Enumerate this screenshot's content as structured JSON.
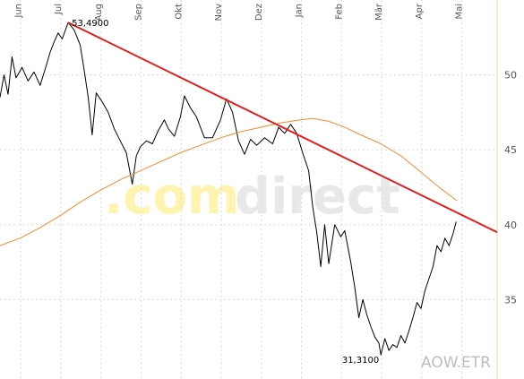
{
  "chart_data": {
    "type": "line",
    "symbol": "AOW.ETR",
    "watermark": {
      "part1": ".com",
      "part2": "direct"
    },
    "x_tick_labels": [
      "Jun",
      "Jul",
      "Aug",
      "Sep",
      "Okt",
      "Nov",
      "Dez",
      "Jan",
      "Feb",
      "Mär",
      "Apr",
      "Mai"
    ],
    "y_ticks": [
      35,
      40,
      45,
      50
    ],
    "ylim": [
      29.7,
      55.0
    ],
    "xlim": [
      0,
      12.4
    ],
    "grid": true,
    "max_label": "53,4900",
    "min_label": "31,3100",
    "max_point": {
      "x": 1.7,
      "y": 53.49
    },
    "min_point": {
      "x": 9.5,
      "y": 31.31
    },
    "series": [
      {
        "role": "price",
        "color": "#000000",
        "points": [
          [
            0.0,
            48.5
          ],
          [
            0.1,
            50.0
          ],
          [
            0.2,
            48.7
          ],
          [
            0.3,
            51.2
          ],
          [
            0.4,
            49.8
          ],
          [
            0.55,
            50.5
          ],
          [
            0.7,
            49.6
          ],
          [
            0.85,
            50.2
          ],
          [
            1.0,
            49.3
          ],
          [
            1.15,
            50.6
          ],
          [
            1.25,
            51.5
          ],
          [
            1.35,
            52.2
          ],
          [
            1.45,
            52.8
          ],
          [
            1.55,
            52.4
          ],
          [
            1.7,
            53.49
          ],
          [
            1.85,
            53.0
          ],
          [
            2.0,
            52.0
          ],
          [
            2.1,
            50.3
          ],
          [
            2.2,
            48.5
          ],
          [
            2.3,
            46.0
          ],
          [
            2.4,
            48.8
          ],
          [
            2.55,
            48.2
          ],
          [
            2.7,
            47.5
          ],
          [
            2.85,
            46.4
          ],
          [
            3.0,
            45.6
          ],
          [
            3.15,
            44.8
          ],
          [
            3.3,
            42.7
          ],
          [
            3.4,
            44.6
          ],
          [
            3.5,
            45.2
          ],
          [
            3.65,
            45.6
          ],
          [
            3.8,
            45.4
          ],
          [
            3.95,
            46.3
          ],
          [
            4.1,
            47.0
          ],
          [
            4.2,
            46.4
          ],
          [
            4.35,
            45.9
          ],
          [
            4.5,
            47.2
          ],
          [
            4.6,
            48.6
          ],
          [
            4.75,
            47.8
          ],
          [
            4.9,
            47.2
          ],
          [
            5.1,
            45.8
          ],
          [
            5.3,
            45.8
          ],
          [
            5.5,
            47.0
          ],
          [
            5.65,
            48.4
          ],
          [
            5.8,
            47.5
          ],
          [
            5.95,
            45.6
          ],
          [
            6.1,
            44.7
          ],
          [
            6.25,
            45.7
          ],
          [
            6.4,
            45.3
          ],
          [
            6.6,
            45.8
          ],
          [
            6.8,
            45.4
          ],
          [
            6.95,
            46.5
          ],
          [
            7.1,
            46.1
          ],
          [
            7.25,
            46.7
          ],
          [
            7.4,
            46.1
          ],
          [
            7.55,
            44.8
          ],
          [
            7.7,
            43.6
          ],
          [
            7.8,
            41.2
          ],
          [
            7.9,
            39.5
          ],
          [
            8.0,
            37.2
          ],
          [
            8.1,
            40.0
          ],
          [
            8.2,
            37.4
          ],
          [
            8.35,
            40.0
          ],
          [
            8.5,
            39.2
          ],
          [
            8.6,
            39.6
          ],
          [
            8.75,
            37.5
          ],
          [
            8.85,
            35.8
          ],
          [
            8.95,
            33.8
          ],
          [
            9.05,
            35.0
          ],
          [
            9.15,
            34.0
          ],
          [
            9.25,
            33.2
          ],
          [
            9.35,
            32.5
          ],
          [
            9.45,
            32.1
          ],
          [
            9.5,
            31.31
          ],
          [
            9.6,
            32.4
          ],
          [
            9.7,
            31.6
          ],
          [
            9.8,
            32.0
          ],
          [
            9.9,
            31.8
          ],
          [
            10.0,
            32.6
          ],
          [
            10.1,
            32.1
          ],
          [
            10.2,
            32.9
          ],
          [
            10.3,
            33.8
          ],
          [
            10.4,
            34.8
          ],
          [
            10.5,
            34.4
          ],
          [
            10.6,
            35.6
          ],
          [
            10.7,
            36.4
          ],
          [
            10.8,
            37.2
          ],
          [
            10.9,
            38.6
          ],
          [
            11.0,
            38.2
          ],
          [
            11.1,
            39.1
          ],
          [
            11.2,
            38.6
          ],
          [
            11.3,
            39.4
          ],
          [
            11.38,
            40.2
          ]
        ]
      },
      {
        "role": "moving-average",
        "color": "#f28c28",
        "points": [
          [
            0.0,
            38.6
          ],
          [
            0.5,
            39.1
          ],
          [
            1.0,
            39.8
          ],
          [
            1.5,
            40.6
          ],
          [
            2.0,
            41.5
          ],
          [
            2.5,
            42.3
          ],
          [
            3.0,
            43.0
          ],
          [
            3.5,
            43.6
          ],
          [
            4.0,
            44.2
          ],
          [
            4.5,
            44.8
          ],
          [
            5.0,
            45.3
          ],
          [
            5.5,
            45.8
          ],
          [
            6.0,
            46.2
          ],
          [
            6.5,
            46.5
          ],
          [
            7.0,
            46.8
          ],
          [
            7.5,
            47.0
          ],
          [
            7.8,
            47.1
          ],
          [
            8.2,
            46.9
          ],
          [
            8.6,
            46.5
          ],
          [
            9.0,
            46.0
          ],
          [
            9.5,
            45.4
          ],
          [
            10.0,
            44.6
          ],
          [
            10.5,
            43.5
          ],
          [
            11.0,
            42.4
          ],
          [
            11.4,
            41.6
          ]
        ]
      },
      {
        "role": "trend-line",
        "color": "#e02020",
        "points": [
          [
            1.7,
            53.49
          ],
          [
            12.4,
            39.5
          ]
        ]
      }
    ]
  }
}
